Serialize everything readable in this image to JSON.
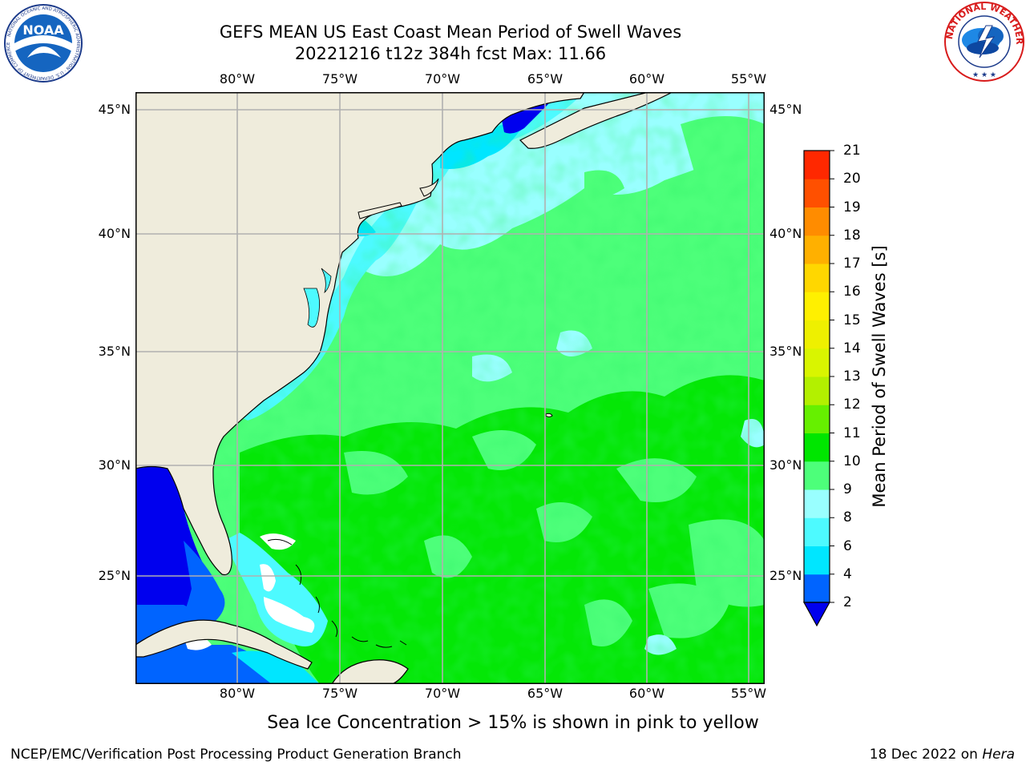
{
  "title": {
    "line1": "GEFS MEAN US East Coast Mean Period of Swell Waves",
    "line2": "20221216 t12z 384h fcst   Max: 11.66"
  },
  "map": {
    "lon_labels": [
      "80°W",
      "75°W",
      "70°W",
      "65°W",
      "60°W",
      "55°W"
    ],
    "lat_labels": [
      "45°N",
      "40°N",
      "35°N",
      "30°N",
      "25°N"
    ],
    "lon_range": [
      -85,
      -54.7
    ],
    "lat_range": [
      20.4,
      46
    ],
    "gridlines": true,
    "land_color": "#efecdc",
    "ice_color": "#ffffff"
  },
  "colorbar": {
    "label": "Mean Period of Swell Waves [s]",
    "ticks": [
      "2",
      "4",
      "6",
      "8",
      "9",
      "10",
      "11",
      "12",
      "13",
      "14",
      "15",
      "16",
      "17",
      "18",
      "19",
      "20",
      "21"
    ],
    "extend": "min",
    "colors": [
      "#0064ff",
      "#00e6ff",
      "#4dfaff",
      "#99ffff",
      "#4dff7a",
      "#00e600",
      "#66f000",
      "#b3f000",
      "#d9f500",
      "#eef000",
      "#fff000",
      "#ffd700",
      "#ffb000",
      "#ff8c00",
      "#ff5000",
      "#ff2800",
      "#ff0000"
    ],
    "under_color": "#0000ee"
  },
  "note": "Sea Ice Concentration > 15% is shown in pink to yellow",
  "footer": {
    "left": "NCEP/EMC/Verification Post Processing Product Generation Branch",
    "date": "18 Dec 2022 on ",
    "machine": "Hera"
  },
  "logos": {
    "left": "NOAA",
    "right": "NATIONAL WEATHER SERVICE"
  }
}
